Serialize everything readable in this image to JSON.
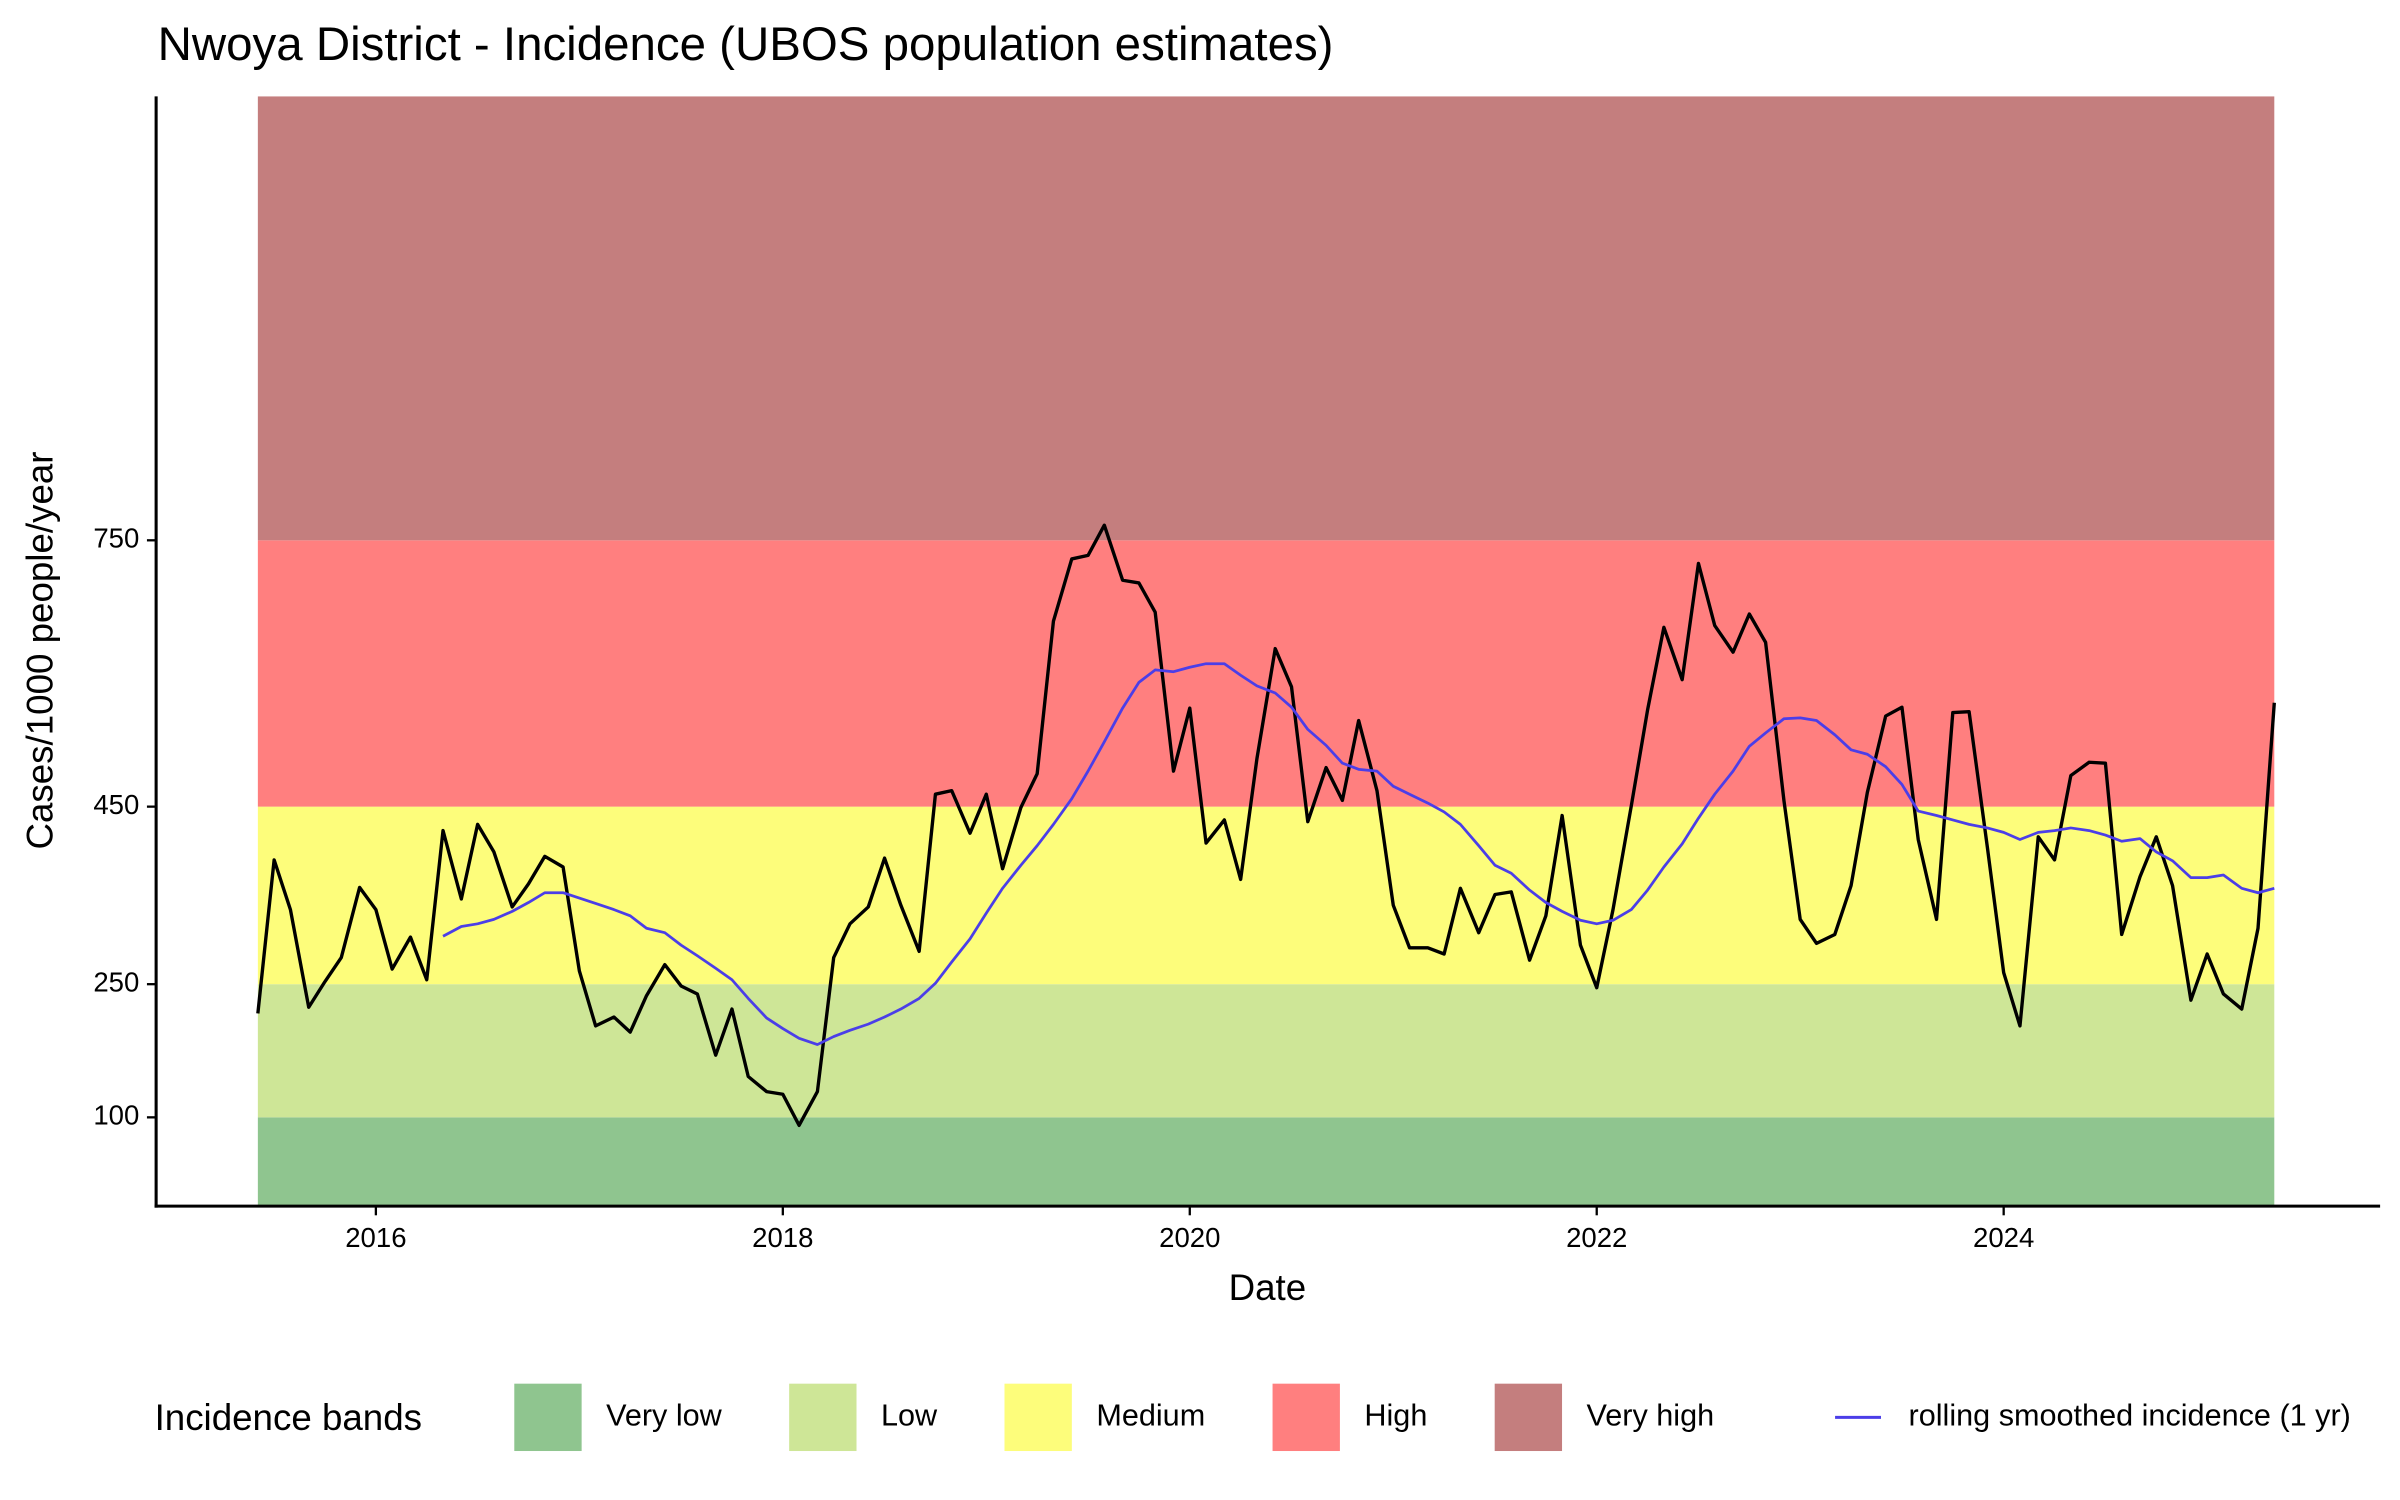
{
  "chart_data": {
    "type": "line",
    "title": "Nwoya District - Incidence (UBOS population estimates)",
    "x_label": "Date",
    "y_label": "Cases/1000 people/year",
    "xlim": [
      2014.92,
      2025.85
    ],
    "xticks": [
      2016,
      2018,
      2020,
      2022,
      2024
    ],
    "ylim": [
      0,
      1250
    ],
    "yticks": [
      100,
      250,
      450,
      750
    ],
    "legend_title": "Incidence bands",
    "legend_position": "bottom",
    "bands": [
      {
        "name": "Very low",
        "from": 0,
        "to": 100,
        "color": "#8fc58f"
      },
      {
        "name": "Low",
        "from": 100,
        "to": 250,
        "color": "#cee697"
      },
      {
        "name": "Medium",
        "from": 250,
        "to": 450,
        "color": "#fdfd7b"
      },
      {
        "name": "High",
        "from": 450,
        "to": 750,
        "color": "#ff7f7f"
      },
      {
        "name": "Very high",
        "from": 750,
        "to": 1250,
        "color": "#c47e7e"
      }
    ],
    "x": [
      2015.42,
      2015.5,
      2015.58,
      2015.67,
      2015.75,
      2015.83,
      2015.92,
      2016.0,
      2016.08,
      2016.17,
      2016.25,
      2016.33,
      2016.42,
      2016.5,
      2016.58,
      2016.67,
      2016.75,
      2016.83,
      2016.92,
      2017.0,
      2017.08,
      2017.17,
      2017.25,
      2017.33,
      2017.42,
      2017.5,
      2017.58,
      2017.67,
      2017.75,
      2017.83,
      2017.92,
      2018.0,
      2018.08,
      2018.17,
      2018.25,
      2018.33,
      2018.42,
      2018.5,
      2018.58,
      2018.67,
      2018.75,
      2018.83,
      2018.92,
      2019.0,
      2019.08,
      2019.17,
      2019.25,
      2019.33,
      2019.42,
      2019.5,
      2019.58,
      2019.67,
      2019.75,
      2019.83,
      2019.92,
      2020.0,
      2020.08,
      2020.17,
      2020.25,
      2020.33,
      2020.42,
      2020.5,
      2020.58,
      2020.67,
      2020.75,
      2020.83,
      2020.92,
      2021.0,
      2021.08,
      2021.17,
      2021.25,
      2021.33,
      2021.42,
      2021.5,
      2021.58,
      2021.67,
      2021.75,
      2021.83,
      2021.92,
      2022.0,
      2022.08,
      2022.17,
      2022.25,
      2022.33,
      2022.42,
      2022.5,
      2022.58,
      2022.67,
      2022.75,
      2022.83,
      2022.92,
      2023.0,
      2023.08,
      2023.17,
      2023.25,
      2023.33,
      2023.42,
      2023.5,
      2023.58,
      2023.67,
      2023.75,
      2023.83,
      2023.92,
      2024.0,
      2024.08,
      2024.17,
      2024.25,
      2024.33,
      2024.42,
      2024.5,
      2024.58,
      2024.67,
      2024.75,
      2024.83,
      2024.92,
      2025.0,
      2025.08,
      2025.17,
      2025.25,
      2025.33
    ],
    "series": [
      {
        "color": "#000000",
        "values": [
          217,
          390,
          334,
          224,
          253,
          280,
          359,
          334,
          267,
          303,
          255,
          423,
          346,
          430,
          399,
          337,
          363,
          394,
          382,
          265,
          203,
          213,
          196,
          237,
          272,
          248,
          239,
          170,
          222,
          146,
          129,
          126,
          91,
          129,
          280,
          318,
          337,
          392,
          339,
          287,
          464,
          468,
          420,
          464,
          380,
          449,
          487,
          659,
          729,
          733,
          767,
          705,
          702,
          669,
          490,
          561,
          409,
          435,
          368,
          504,
          628,
          585,
          433,
          494,
          457,
          547,
          468,
          339,
          291,
          291,
          284,
          358,
          308,
          351,
          354,
          277,
          327,
          440,
          294,
          246,
          334,
          451,
          559,
          652,
          593,
          724,
          654,
          624,
          667,
          635,
          457,
          323,
          296,
          306,
          361,
          466,
          552,
          562,
          413,
          323,
          556,
          557,
          404,
          263,
          203,
          416,
          390,
          485,
          500,
          499,
          306,
          371,
          416,
          361,
          232,
          284,
          239,
          222,
          313,
          567
        ]
      },
      {
        "name": "rolling smoothed incidence (1 yr)",
        "color": "#4b3ee8",
        "values": [
          null,
          null,
          null,
          null,
          null,
          null,
          null,
          null,
          null,
          null,
          null,
          304,
          315,
          318,
          323,
          332,
          342,
          353,
          353,
          347,
          341,
          334,
          327,
          313,
          308,
          294,
          282,
          268,
          255,
          234,
          212,
          200,
          189,
          182,
          191,
          198,
          205,
          213,
          222,
          234,
          251,
          275,
          301,
          330,
          358,
          384,
          406,
          430,
          459,
          490,
          523,
          561,
          590,
          604,
          602,
          607,
          611,
          611,
          598,
          586,
          578,
          562,
          537,
          519,
          499,
          492,
          490,
          473,
          464,
          454,
          444,
          430,
          406,
          384,
          375,
          356,
          342,
          332,
          322,
          318,
          322,
          334,
          356,
          382,
          408,
          437,
          464,
          490,
          518,
          533,
          549,
          550,
          547,
          531,
          514,
          509,
          495,
          475,
          445,
          440,
          435,
          430,
          426,
          421,
          413,
          421,
          423,
          426,
          423,
          418,
          411,
          414,
          399,
          389,
          370,
          370,
          373,
          358,
          353,
          358
        ]
      }
    ]
  }
}
